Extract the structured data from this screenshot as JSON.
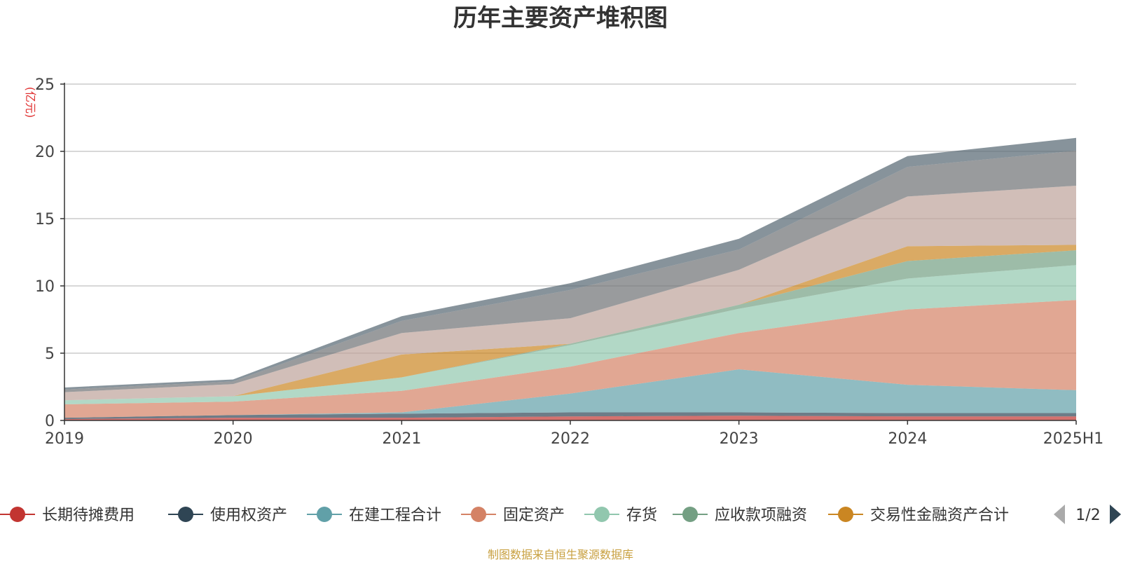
{
  "chart_data": {
    "type": "area",
    "stacked": true,
    "title": "历年主要资产堆积图",
    "ylabel": "(亿元)",
    "xlabel": "",
    "ylim": [
      0,
      25
    ],
    "y_ticks": [
      0,
      5,
      10,
      15,
      20,
      25
    ],
    "grid": true,
    "legend_position": "bottom",
    "categories": [
      "2019",
      "2020",
      "2021",
      "2022",
      "2023",
      "2024",
      "2025H1"
    ],
    "series": [
      {
        "name": "长期待摊费用",
        "color": "#c23531",
        "values": [
          0.1,
          0.2,
          0.2,
          0.3,
          0.35,
          0.3,
          0.3
        ]
      },
      {
        "name": "使用权资产",
        "color": "#2f4554",
        "values": [
          0.1,
          0.2,
          0.3,
          0.3,
          0.25,
          0.25,
          0.25
        ]
      },
      {
        "name": "在建工程合计",
        "color": "#61a0a8",
        "values": [
          0.0,
          0.0,
          0.1,
          1.4,
          3.2,
          2.1,
          1.7
        ]
      },
      {
        "name": "固定资产",
        "color": "#d48265",
        "values": [
          1.0,
          1.0,
          1.6,
          2.0,
          2.7,
          5.6,
          6.7
        ]
      },
      {
        "name": "存货",
        "color": "#91c7ae",
        "values": [
          0.3,
          0.4,
          1.0,
          1.6,
          1.8,
          2.3,
          2.6
        ]
      },
      {
        "name": "应收款项融资",
        "color": "#749f83",
        "values": [
          0.0,
          0.0,
          0.0,
          0.1,
          0.3,
          1.3,
          1.1
        ]
      },
      {
        "name": "交易性金融资产合计",
        "color": "#ca8622",
        "values": [
          0.0,
          0.0,
          1.7,
          0.0,
          0.0,
          1.1,
          0.4
        ]
      },
      {
        "name": "",
        "color": "#bda29a",
        "values": [
          0.6,
          0.9,
          1.6,
          1.9,
          2.6,
          3.7,
          4.4
        ]
      },
      {
        "name": "",
        "color": "#6e7074",
        "values": [
          0.2,
          0.2,
          0.9,
          2.1,
          1.5,
          2.2,
          2.6
        ]
      },
      {
        "name": "",
        "color": "#546570",
        "values": [
          0.15,
          0.15,
          0.35,
          0.5,
          0.8,
          0.8,
          0.95
        ]
      }
    ],
    "legend_page": "1/2"
  },
  "source_note": "制图数据来自恒生聚源数据库"
}
